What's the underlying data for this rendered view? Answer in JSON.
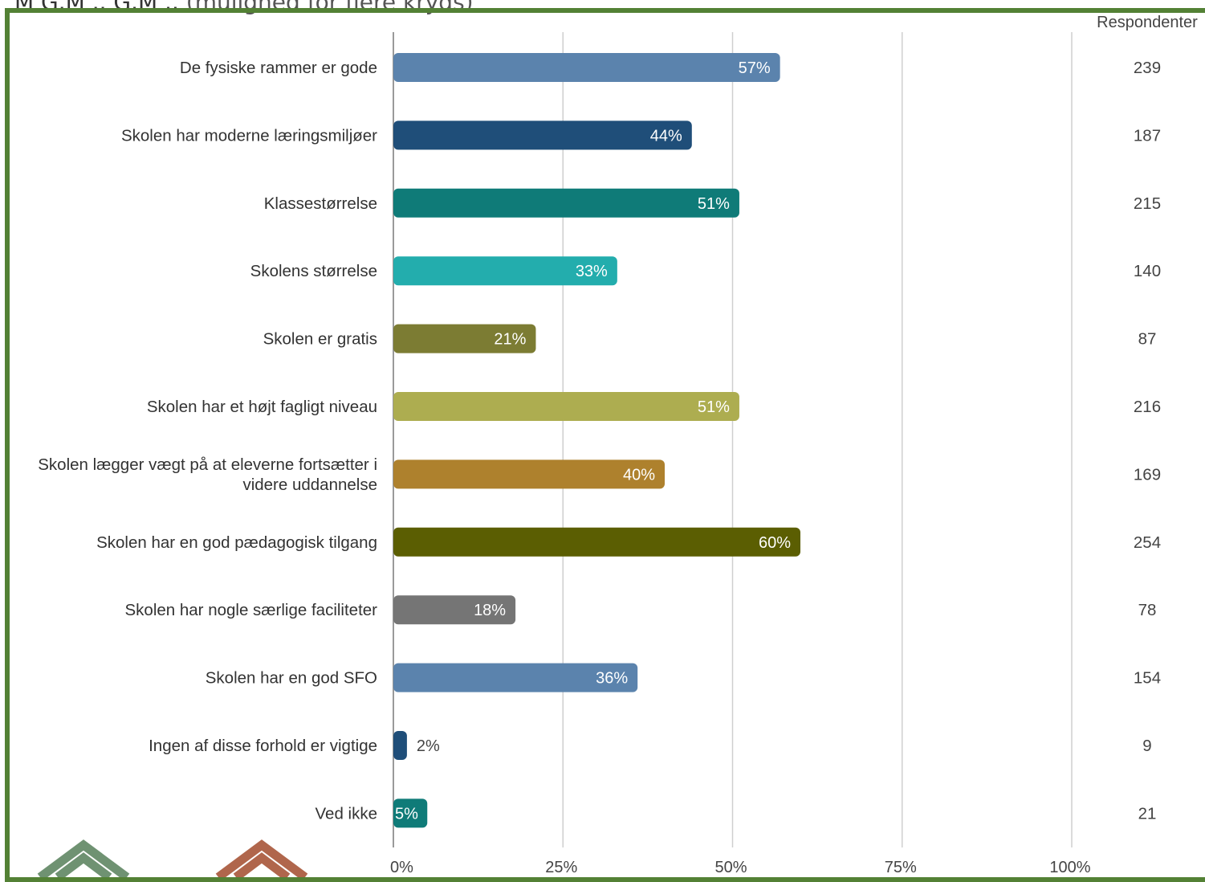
{
  "header": {
    "partial_title": "M  G.M  .. G.M  ..",
    "partial_subtitle": "(mulighed for flere kryds)"
  },
  "chart_data": {
    "type": "bar",
    "orientation": "horizontal",
    "categories": [
      "De fysiske rammer er gode",
      "Skolen har moderne læringsmiljøer",
      "Klassestørrelse",
      "Skolens størrelse",
      "Skolen er gratis",
      "Skolen har et højt fagligt niveau",
      "Skolen lægger vægt på at eleverne fortsætter i videre uddannelse",
      "Skolen har en god pædagogisk tilgang",
      "Skolen har nogle særlige faciliteter",
      "Skolen har en god SFO",
      "Ingen af disse forhold er vigtige",
      "Ved ikke"
    ],
    "category_lines": [
      [
        "De fysiske rammer er gode"
      ],
      [
        "Skolen har moderne læringsmiljøer"
      ],
      [
        "Klassestørrelse"
      ],
      [
        "Skolens størrelse"
      ],
      [
        "Skolen er gratis"
      ],
      [
        "Skolen har et højt fagligt niveau"
      ],
      [
        "Skolen lægger vægt på at eleverne fortsætter i",
        "videre uddannelse"
      ],
      [
        "Skolen har en god pædagogisk tilgang"
      ],
      [
        "Skolen har nogle særlige faciliteter"
      ],
      [
        "Skolen har en god SFO"
      ],
      [
        "Ingen af disse forhold er vigtige"
      ],
      [
        "Ved ikke"
      ]
    ],
    "values": [
      57,
      44,
      51,
      33,
      21,
      51,
      40,
      60,
      18,
      36,
      2,
      5
    ],
    "value_labels": [
      "57%",
      "44%",
      "51%",
      "33%",
      "21%",
      "51%",
      "40%",
      "60%",
      "18%",
      "36%",
      "2%",
      "5%"
    ],
    "respondents_header": "Respondenter",
    "respondents": [
      "239",
      "187",
      "215",
      "140",
      "87",
      "216",
      "169",
      "254",
      "78",
      "154",
      "9",
      "21"
    ],
    "colors": [
      "#5b83ad",
      "#1f4e79",
      "#0f7b78",
      "#23adad",
      "#7c7c33",
      "#adad50",
      "#ae812d",
      "#5b5e02",
      "#757575",
      "#5b83ad",
      "#1f4e79",
      "#0f7b78"
    ],
    "xlim": [
      0,
      100
    ],
    "x_ticks": [
      "0%",
      "25%",
      "50%",
      "75%",
      "100%"
    ],
    "x_tick_values": [
      0,
      25,
      50,
      75,
      100
    ],
    "grid": true
  }
}
